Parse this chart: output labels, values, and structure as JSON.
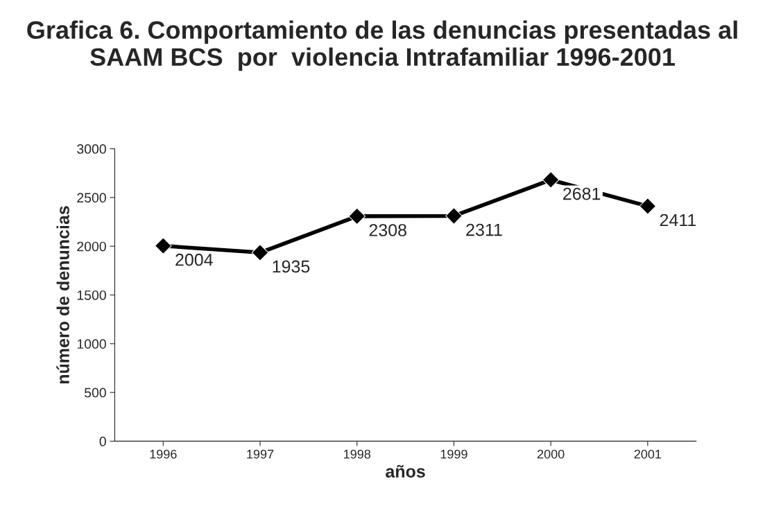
{
  "chart_data": {
    "type": "line",
    "title": "Grafica 6. Comportamiento de las denuncias presentadas al SAAM BCS  por  violencia Intrafamiliar 1996-2001",
    "xlabel": "años",
    "ylabel": "número de denuncias",
    "categories": [
      "1996",
      "1997",
      "1998",
      "1999",
      "2000",
      "2001"
    ],
    "series": [
      {
        "color": "#000000",
        "values": [
          2004,
          1935,
          2308,
          2311,
          2681,
          2411
        ]
      }
    ],
    "ylim": [
      0,
      3000
    ],
    "yticks": [
      0,
      500,
      1000,
      1500,
      2000,
      2500,
      3000
    ],
    "data_labels": true,
    "marker": "diamond",
    "line_style": "solid",
    "grid": false,
    "legend": false
  }
}
